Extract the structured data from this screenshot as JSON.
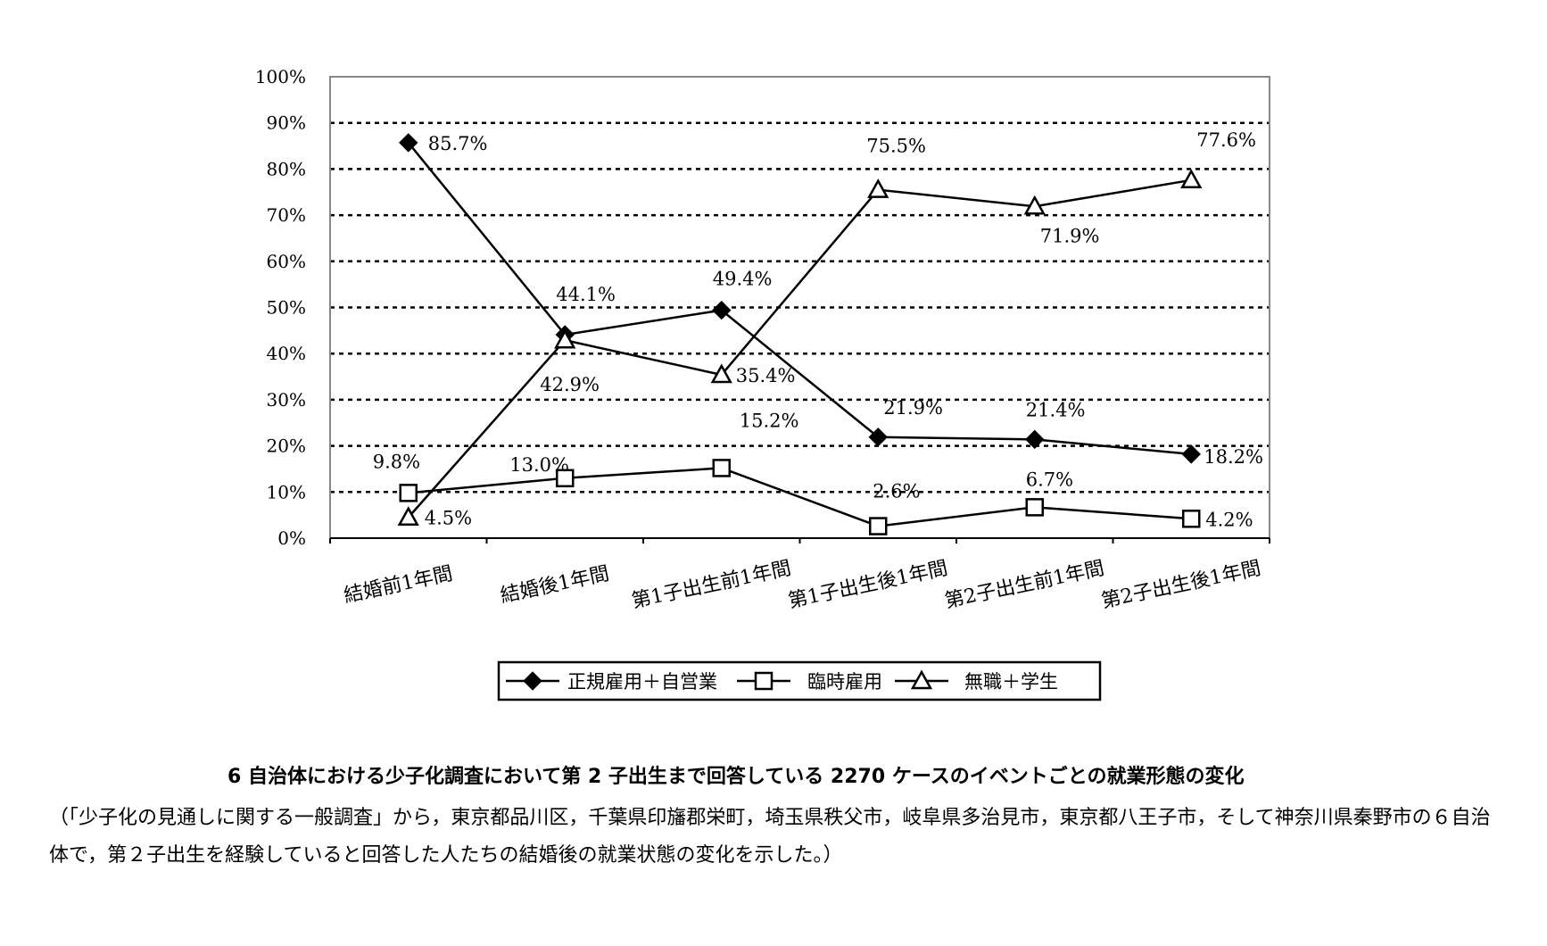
{
  "chart_data": {
    "type": "line",
    "categories": [
      "結婚前1年間",
      "結婚後1年間",
      "第1子出生前1年間",
      "第1子出生後1年間",
      "第2子出生前1年間",
      "第2子出生後1年間"
    ],
    "series": [
      {
        "name": "正規雇用＋自営業",
        "marker": "diamond",
        "values": [
          85.7,
          44.1,
          49.4,
          21.9,
          21.4,
          18.2
        ],
        "labels": [
          "85.7%",
          "44.1%",
          "49.4%",
          "21.9%",
          "21.4%",
          "18.2%"
        ]
      },
      {
        "name": "臨時雇用",
        "marker": "square",
        "values": [
          9.8,
          13.0,
          15.2,
          2.6,
          6.7,
          4.2
        ],
        "labels": [
          "9.8%",
          "13.0%",
          "15.2%",
          "2.6%",
          "6.7%",
          "4.2%"
        ]
      },
      {
        "name": "無職＋学生",
        "marker": "triangle",
        "values": [
          4.5,
          42.9,
          35.4,
          75.5,
          71.9,
          77.6
        ],
        "labels": [
          "4.5%",
          "42.9%",
          "35.4%",
          "75.5%",
          "71.9%",
          "77.6%"
        ]
      }
    ],
    "yticks": [
      "0%",
      "10%",
      "20%",
      "30%",
      "40%",
      "50%",
      "60%",
      "70%",
      "80%",
      "90%",
      "100%"
    ],
    "ylim": [
      0,
      100
    ],
    "grid": "dotted horizontal",
    "legend": "bottom",
    "colors": {
      "line": "#000000",
      "background": "#ffffff"
    }
  },
  "caption": {
    "title": "6 自治体における少子化調査において第 2 子出生まで回答している 2270 ケースのイベントごとの就業形態の変化",
    "note": "（「少子化の見通しに関する一般調査」から，東京都品川区，千葉県印旛郡栄町，埼玉県秩父市，岐阜県多治見市，東京都八王子市，そして神奈川県秦野市の６自治体で，第２子出生を経験していると回答した人たちの結婚後の就業状態の変化を示した。）"
  }
}
